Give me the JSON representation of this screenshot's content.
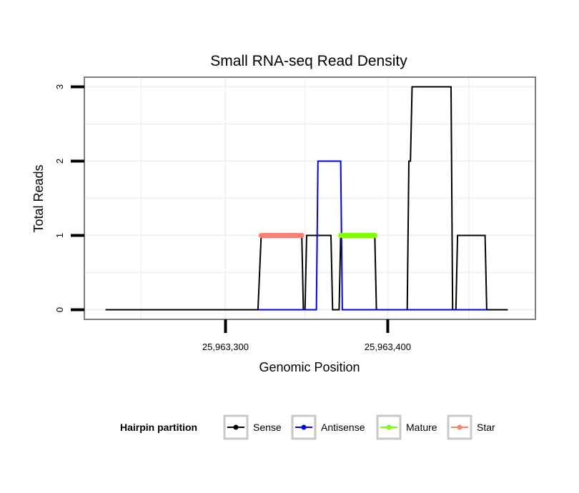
{
  "chart_data": {
    "type": "line",
    "title": "Small RNA-seq Read Density",
    "xlabel": "Genomic Position",
    "ylabel": "Total Reads",
    "xlim": [
      25963213,
      25963491
    ],
    "ylim": [
      -0.13,
      3.13
    ],
    "x_ticks": [
      {
        "value": 25963300,
        "label": "25,963,300"
      },
      {
        "value": 25963400,
        "label": "25,963,400"
      }
    ],
    "y_ticks": [
      {
        "value": 0,
        "label": "0"
      },
      {
        "value": 1,
        "label": "1"
      },
      {
        "value": 2,
        "label": "2"
      },
      {
        "value": 3,
        "label": "3"
      }
    ],
    "x_grid": [
      25963248,
      25963300,
      25963349,
      25963400,
      25963450
    ],
    "y_grid": [
      0,
      0.5,
      1,
      1.5,
      2,
      2.5,
      3
    ],
    "legend": {
      "title": "Hairpin partition",
      "position": "bottom",
      "entries": [
        {
          "name": "Sense",
          "color": "#000000"
        },
        {
          "name": "Antisense",
          "color": "#0000ff"
        },
        {
          "name": "Mature",
          "color": "#7fff00"
        },
        {
          "name": "Star",
          "color": "#fa8072"
        }
      ]
    },
    "series": [
      {
        "name": "Sense",
        "color": "#000000",
        "x": [
          25963226,
          25963320,
          25963322,
          25963347,
          25963348,
          25963349,
          25963350,
          25963365,
          25963366,
          25963367,
          25963370,
          25963371,
          25963392,
          25963393,
          25963412,
          25963413,
          25963414,
          25963415,
          25963439,
          25963440,
          25963442,
          25963443,
          25963460,
          25963461,
          25963474
        ],
        "y": [
          0,
          0,
          1,
          1,
          0,
          0,
          1,
          1,
          0,
          0,
          0,
          1,
          1,
          0,
          0,
          2,
          2,
          3,
          3,
          0,
          0,
          1,
          1,
          0,
          0
        ]
      },
      {
        "name": "Antisense",
        "color": "#0000ff",
        "x": [
          25963320,
          25963356,
          25963357,
          25963371,
          25963372,
          25963461
        ],
        "y": [
          0,
          0,
          2,
          2,
          0,
          0
        ]
      },
      {
        "name": "Mature",
        "color": "#7fff00",
        "x": [
          25963371,
          25963374,
          25963377,
          25963380,
          25963383,
          25963386,
          25963389,
          25963392
        ],
        "y": [
          1,
          1,
          1,
          1,
          1,
          1,
          1,
          1
        ]
      },
      {
        "name": "Star",
        "color": "#fa8072",
        "x": [
          25963322,
          25963325,
          25963328,
          25963331,
          25963334,
          25963337,
          25963340,
          25963343,
          25963347
        ],
        "y": [
          1,
          1,
          1,
          1,
          1,
          1,
          1,
          1,
          1
        ]
      }
    ]
  }
}
